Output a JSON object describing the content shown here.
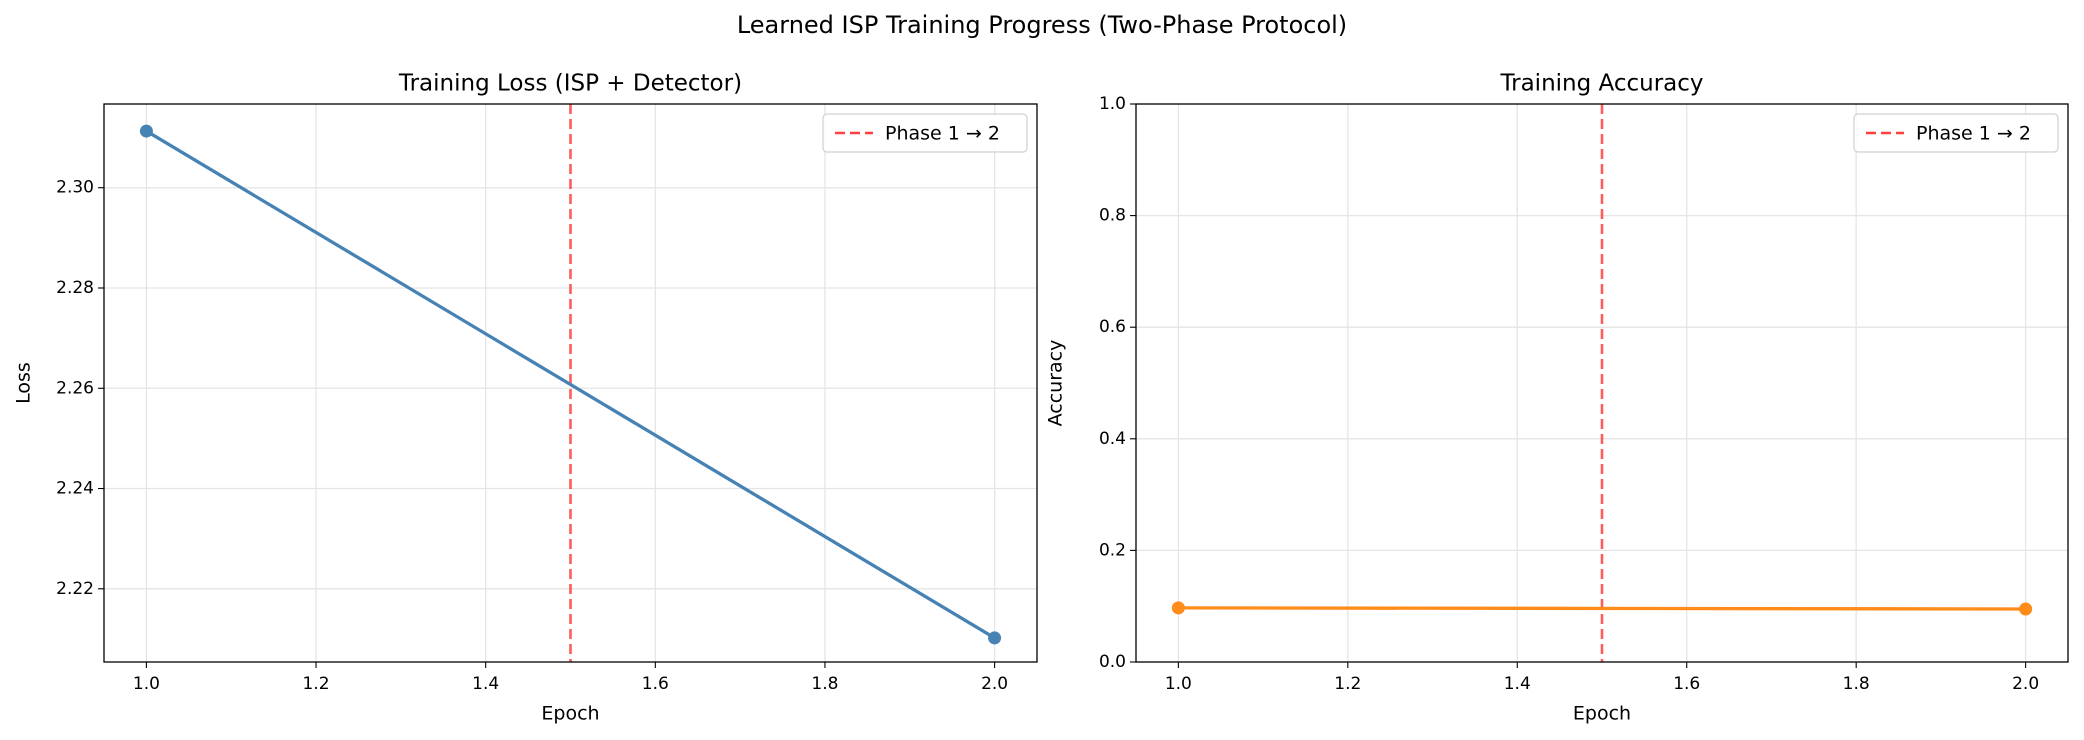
{
  "figure_title": "Learned ISP Training Progress (Two-Phase Protocol)",
  "chart_data": [
    {
      "type": "line",
      "title": "Training Loss (ISP + Detector)",
      "xlabel": "Epoch",
      "ylabel": "Loss",
      "x": [
        1,
        2
      ],
      "series": [
        {
          "color": "#4682b4",
          "values": [
            2.3113,
            2.2102
          ]
        }
      ],
      "xlim": [
        0.95,
        2.05
      ],
      "xticks": [
        {
          "value": 1,
          "label": "1.0"
        },
        {
          "value": 1.2,
          "label": "1.2"
        },
        {
          "value": 1.4,
          "label": "1.4"
        },
        {
          "value": 1.6,
          "label": "1.6"
        },
        {
          "value": 1.8,
          "label": "1.8"
        },
        {
          "value": 2,
          "label": "2.0"
        }
      ],
      "ylim": [
        2.2054,
        2.3167
      ],
      "yticks": [
        {
          "value": 2.22,
          "label": "2.22"
        },
        {
          "value": 2.24,
          "label": "2.24"
        },
        {
          "value": 2.26,
          "label": "2.26"
        },
        {
          "value": 2.28,
          "label": "2.28"
        },
        {
          "value": 2.3,
          "label": "2.30"
        }
      ],
      "grid": true,
      "vline": {
        "x": 1.5,
        "label": "Phase 1 → 2",
        "color": "#ff4040"
      },
      "legend": "upper-right"
    },
    {
      "type": "line",
      "title": "Training Accuracy",
      "xlabel": "Epoch",
      "ylabel": "Accuracy",
      "x": [
        1,
        2
      ],
      "series": [
        {
          "color": "#ff8c1a",
          "values": [
            0.097,
            0.095
          ]
        }
      ],
      "xlim": [
        0.95,
        2.05
      ],
      "xticks": [
        {
          "value": 1,
          "label": "1.0"
        },
        {
          "value": 1.2,
          "label": "1.2"
        },
        {
          "value": 1.4,
          "label": "1.4"
        },
        {
          "value": 1.6,
          "label": "1.6"
        },
        {
          "value": 1.8,
          "label": "1.8"
        },
        {
          "value": 2,
          "label": "2.0"
        }
      ],
      "ylim": [
        0,
        1
      ],
      "yticks": [
        {
          "value": 0,
          "label": "0.0"
        },
        {
          "value": 0.2,
          "label": "0.2"
        },
        {
          "value": 0.4,
          "label": "0.4"
        },
        {
          "value": 0.6,
          "label": "0.6"
        },
        {
          "value": 0.8,
          "label": "0.8"
        },
        {
          "value": 1,
          "label": "1.0"
        }
      ],
      "grid": true,
      "vline": {
        "x": 1.5,
        "label": "Phase 1 → 2",
        "color": "#ff4040"
      },
      "legend": "upper-right"
    }
  ]
}
